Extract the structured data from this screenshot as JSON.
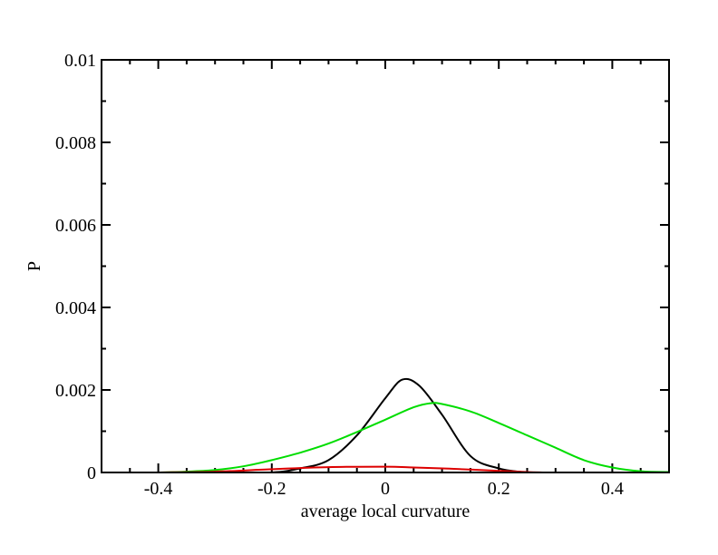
{
  "chart_data": {
    "type": "line",
    "title": "",
    "xlabel": "average local curvature",
    "ylabel": "P",
    "xlim": [
      -0.5,
      0.5
    ],
    "ylim": [
      0,
      0.01
    ],
    "grid": false,
    "x_ticks": [
      "-0.4",
      "-0.2",
      "0",
      "0.2",
      "0.4"
    ],
    "y_ticks": [
      "0",
      "0.002",
      "0.004",
      "0.006",
      "0.008",
      "0.01"
    ],
    "series": [
      {
        "color": "#000000",
        "x": [
          -0.3,
          -0.2,
          -0.15,
          -0.1,
          -0.05,
          0.0,
          0.03,
          0.06,
          0.1,
          0.15,
          0.2,
          0.25,
          0.3
        ],
        "y": [
          0.0,
          0.0,
          0.0001,
          0.0003,
          0.0009,
          0.0018,
          0.00225,
          0.0021,
          0.0014,
          0.0004,
          0.0001,
          0.0,
          0.0
        ]
      },
      {
        "color": "#00dd00",
        "x": [
          -0.4,
          -0.35,
          -0.3,
          -0.25,
          -0.2,
          -0.15,
          -0.1,
          -0.05,
          0.0,
          0.05,
          0.08,
          0.1,
          0.15,
          0.2,
          0.25,
          0.3,
          0.35,
          0.4,
          0.45,
          0.5
        ],
        "y": [
          0.0,
          2e-05,
          6e-05,
          0.00015,
          0.0003,
          0.00048,
          0.0007,
          0.00098,
          0.00128,
          0.00158,
          0.00168,
          0.00166,
          0.00148,
          0.0012,
          0.0009,
          0.0006,
          0.0003,
          0.00012,
          3e-05,
          1e-05
        ]
      },
      {
        "color": "#dd0000",
        "x": [
          -0.4,
          -0.3,
          -0.2,
          -0.1,
          0.0,
          0.05,
          0.1,
          0.15,
          0.2,
          0.25,
          0.28
        ],
        "y": [
          0.0,
          2e-05,
          8e-05,
          0.00013,
          0.00014,
          0.00012,
          0.0001,
          7e-05,
          4e-05,
          1e-05,
          0.0
        ]
      }
    ]
  }
}
